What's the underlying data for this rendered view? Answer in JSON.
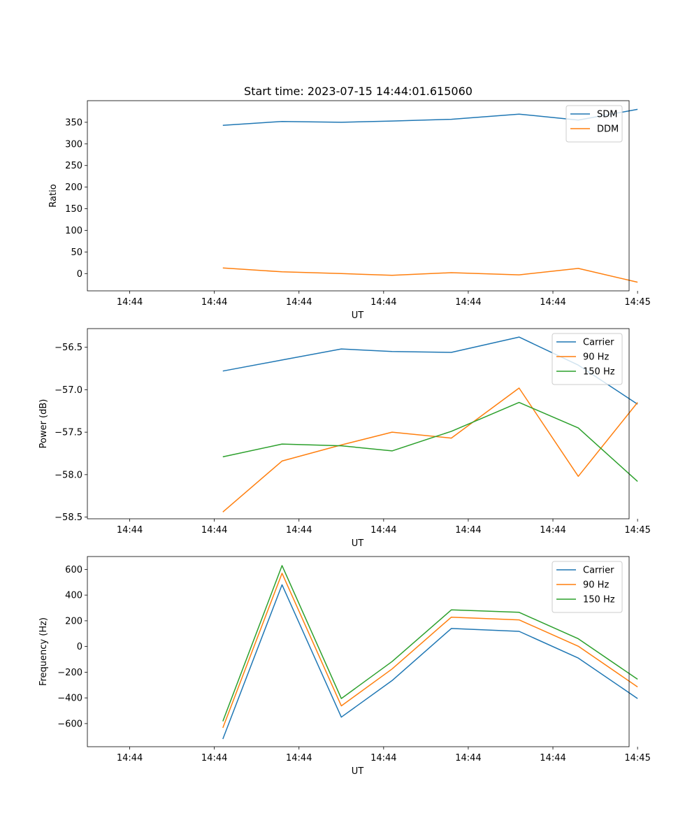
{
  "title": "Start time: 2023-07-15 14:44:01.615060",
  "colors": {
    "blue": "#1f77b4",
    "orange": "#ff7f0e",
    "green": "#2ca02c"
  },
  "chart_data": [
    {
      "type": "line",
      "title": "Start time: 2023-07-15 14:44:01.615060",
      "xlabel": "UT",
      "ylabel": "Ratio",
      "x_seconds": [
        1.6,
        2.3,
        3.0,
        3.6,
        4.3,
        5.1,
        5.8,
        6.5
      ],
      "xlim": [
        0,
        6.4
      ],
      "x_ticks": [
        0.5,
        1.5,
        2.5,
        3.5,
        4.5,
        5.5,
        6.5
      ],
      "x_tick_labels": [
        "14:44",
        "14:44",
        "14:44",
        "14:44",
        "14:44",
        "14:44",
        "14:45"
      ],
      "ylim": [
        -40,
        400
      ],
      "y_ticks": [
        0,
        50,
        100,
        150,
        200,
        250,
        300,
        350
      ],
      "y_tick_labels": [
        "0",
        "50",
        "100",
        "150",
        "200",
        "250",
        "300",
        "350"
      ],
      "legend_location": "top-right",
      "series": [
        {
          "name": "SDM",
          "color": "#1f77b4",
          "values": [
            343,
            352,
            350,
            353,
            357,
            369,
            355,
            380
          ]
        },
        {
          "name": "DDM",
          "color": "#ff7f0e",
          "values": [
            13,
            4,
            0,
            -4,
            2,
            -3,
            12,
            -20
          ]
        }
      ]
    },
    {
      "type": "line",
      "xlabel": "UT",
      "ylabel": "Power (dB)",
      "xlim": [
        0,
        6.4
      ],
      "x_ticks": [
        0.5,
        1.5,
        2.5,
        3.5,
        4.5,
        5.5,
        6.5
      ],
      "x_tick_labels": [
        "14:44",
        "14:44",
        "14:44",
        "14:44",
        "14:44",
        "14:44",
        "14:45"
      ],
      "ylim": [
        -58.52,
        -56.28
      ],
      "y_ticks": [
        -58.5,
        -58.0,
        -57.5,
        -57.0,
        -56.5
      ],
      "y_tick_labels": [
        "−58.5",
        "−58.0",
        "−57.5",
        "−57.0",
        "−56.5"
      ],
      "legend_location": "top-right",
      "series": [
        {
          "name": "Carrier",
          "color": "#1f77b4",
          "values": [
            -56.78,
            -56.65,
            -56.52,
            -56.55,
            -56.56,
            -56.38,
            -56.71,
            -57.17
          ]
        },
        {
          "name": "90 Hz",
          "color": "#ff7f0e",
          "values": [
            -58.44,
            -57.84,
            -57.65,
            -57.5,
            -57.57,
            -56.98,
            -58.02,
            -57.15
          ]
        },
        {
          "name": "150 Hz",
          "color": "#2ca02c",
          "values": [
            -57.79,
            -57.64,
            -57.66,
            -57.72,
            -57.49,
            -57.15,
            -57.45,
            -58.08
          ]
        }
      ]
    },
    {
      "type": "line",
      "xlabel": "UT",
      "ylabel": "Frequency (Hz)",
      "xlim": [
        0,
        6.4
      ],
      "x_ticks": [
        0.5,
        1.5,
        2.5,
        3.5,
        4.5,
        5.5,
        6.5
      ],
      "x_tick_labels": [
        "14:44",
        "14:44",
        "14:44",
        "14:44",
        "14:44",
        "14:44",
        "14:45"
      ],
      "ylim": [
        -780,
        700
      ],
      "y_ticks": [
        -600,
        -400,
        -200,
        0,
        200,
        400,
        600
      ],
      "y_tick_labels": [
        "−600",
        "−400",
        "−200",
        "0",
        "200",
        "400",
        "600"
      ],
      "legend_location": "top-right",
      "series": [
        {
          "name": "Carrier",
          "color": "#1f77b4",
          "values": [
            -720,
            480,
            -550,
            -265,
            140,
            118,
            -90,
            -405
          ]
        },
        {
          "name": "90 Hz",
          "color": "#ff7f0e",
          "values": [
            -633,
            570,
            -462,
            -175,
            228,
            207,
            2,
            -315
          ]
        },
        {
          "name": "150 Hz",
          "color": "#2ca02c",
          "values": [
            -582,
            630,
            -405,
            -117,
            285,
            266,
            60,
            -255
          ]
        }
      ]
    }
  ]
}
